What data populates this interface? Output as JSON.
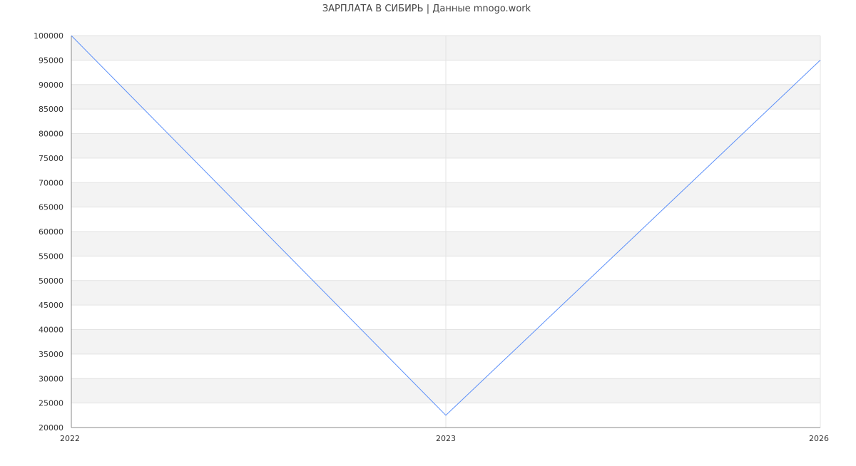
{
  "chart_data": {
    "type": "line",
    "title": "ЗАРПЛАТА В СИБИРЬ | Данные mnogo.work",
    "xlabel": "",
    "ylabel": "",
    "categories": [
      "2022",
      "2023",
      "2026"
    ],
    "series": [
      {
        "values": [
          100000,
          22500,
          95000
        ],
        "color": "#5b8ff9"
      }
    ],
    "ylim": [
      20000,
      100000
    ],
    "yticks": [
      20000,
      25000,
      30000,
      35000,
      40000,
      45000,
      50000,
      55000,
      60000,
      65000,
      70000,
      75000,
      80000,
      85000,
      90000,
      95000,
      100000
    ],
    "grid": true,
    "band_color": "#f3f3f3",
    "grid_color": "#e3e3e3",
    "axis_color": "#888888"
  }
}
